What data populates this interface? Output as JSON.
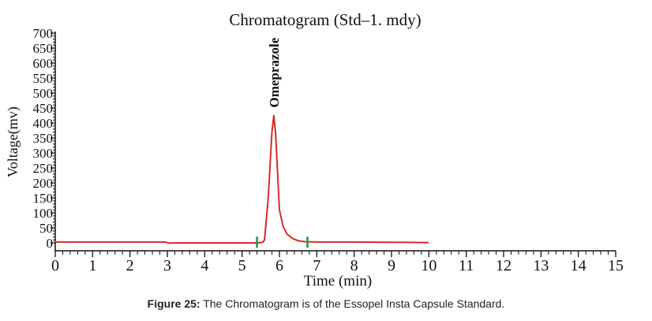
{
  "chart_data": {
    "type": "line",
    "title": "Chromatogram (Std–1. mdy)",
    "xlabel": "Time (min)",
    "ylabel": "Voltage(mv)",
    "xlim": [
      0,
      15
    ],
    "ylim": [
      -10,
      710
    ],
    "xticks": [
      "0",
      "1",
      "2",
      "3",
      "4",
      "5",
      "6",
      "7",
      "8",
      "9",
      "10",
      "11",
      "12",
      "13",
      "14",
      "15"
    ],
    "yticks": [
      "0",
      "50",
      "100",
      "150",
      "200",
      "250",
      "300",
      "350",
      "400",
      "450",
      "500",
      "550",
      "600",
      "650",
      "700"
    ],
    "series": [
      {
        "color": "#d42b2b",
        "x": [
          0,
          2.95,
          3.05,
          3.15,
          5.4,
          5.55,
          5.6,
          5.7,
          5.8,
          5.85,
          5.9,
          6.0,
          6.1,
          6.2,
          6.35,
          6.5,
          6.7,
          7.0,
          8.0,
          9.0,
          10.0
        ],
        "y": [
          3,
          3,
          -1,
          0,
          0,
          2,
          10,
          150,
          370,
          425,
          360,
          110,
          55,
          30,
          15,
          7,
          4,
          3,
          3,
          2,
          1
        ]
      }
    ],
    "annotations": [
      {
        "text": "Omeprazole",
        "x": 5.85,
        "y": 425
      }
    ],
    "markers": [
      {
        "x": 5.4,
        "color": "#1a9a3a"
      },
      {
        "x": 6.75,
        "color": "#1a9a3a"
      }
    ],
    "grid": false,
    "legend": "none"
  },
  "caption": {
    "label": "Figure 25:",
    "text": " The Chromatogram is of the Essopel Insta Capsule Standard."
  }
}
